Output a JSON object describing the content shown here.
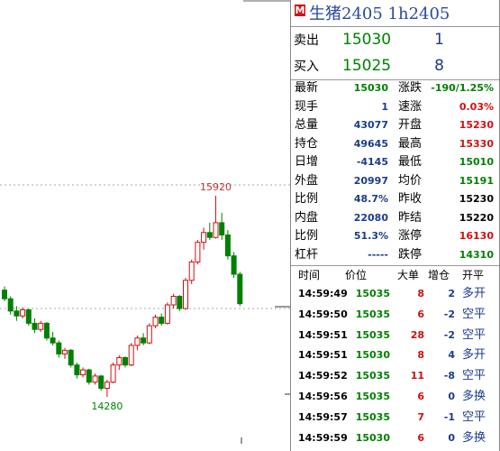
{
  "chart": {
    "high_label": 15920,
    "low_label": 14280,
    "up_color": "#d01010",
    "down_color": "#008000",
    "candles": [
      [
        15150,
        15180,
        15060,
        15080
      ],
      [
        15080,
        15100,
        14950,
        14980
      ],
      [
        14980,
        15020,
        14900,
        14940
      ],
      [
        14940,
        15010,
        14920,
        14990
      ],
      [
        14990,
        15000,
        14860,
        14880
      ],
      [
        14880,
        14920,
        14800,
        14830
      ],
      [
        14830,
        14900,
        14810,
        14880
      ],
      [
        14880,
        14890,
        14740,
        14760
      ],
      [
        14760,
        14810,
        14700,
        14720
      ],
      [
        14720,
        14740,
        14600,
        14630
      ],
      [
        14630,
        14680,
        14590,
        14660
      ],
      [
        14660,
        14670,
        14520,
        14540
      ],
      [
        14540,
        14560,
        14430,
        14460
      ],
      [
        14460,
        14520,
        14440,
        14500
      ],
      [
        14500,
        14510,
        14380,
        14400
      ],
      [
        14400,
        14470,
        14380,
        14450
      ],
      [
        14450,
        14460,
        14330,
        14350
      ],
      [
        14350,
        14420,
        14280,
        14400
      ],
      [
        14400,
        14560,
        14390,
        14540
      ],
      [
        14540,
        14620,
        14500,
        14600
      ],
      [
        14600,
        14610,
        14520,
        14540
      ],
      [
        14540,
        14720,
        14530,
        14700
      ],
      [
        14700,
        14780,
        14660,
        14760
      ],
      [
        14760,
        14800,
        14700,
        14720
      ],
      [
        14720,
        14880,
        14710,
        14860
      ],
      [
        14860,
        14950,
        14840,
        14930
      ],
      [
        14930,
        14960,
        14860,
        14880
      ],
      [
        14880,
        15050,
        14870,
        15030
      ],
      [
        15030,
        15120,
        15000,
        15100
      ],
      [
        15100,
        15110,
        14980,
        15000
      ],
      [
        15000,
        15250,
        14990,
        15230
      ],
      [
        15230,
        15400,
        15200,
        15380
      ],
      [
        15380,
        15560,
        15360,
        15540
      ],
      [
        15540,
        15660,
        15480,
        15620
      ],
      [
        15620,
        15700,
        15560,
        15580
      ],
      [
        15580,
        15920,
        15570,
        15700
      ],
      [
        15700,
        15780,
        15560,
        15600
      ],
      [
        15600,
        15640,
        15400,
        15430
      ],
      [
        15430,
        15460,
        15250,
        15280
      ],
      [
        15280,
        15300,
        15020,
        15040
      ]
    ]
  },
  "header": {
    "badge": "M",
    "title": "生猪2405  1h2405"
  },
  "orderbook": [
    {
      "label": "卖出",
      "price": "15030",
      "volume": "1"
    },
    {
      "label": "买入",
      "price": "15025",
      "volume": "8"
    }
  ],
  "stats": [
    [
      {
        "label": "最新",
        "value": "15030",
        "color": "#008000"
      },
      {
        "label": "涨跌",
        "value": "-190/1.25%",
        "color": "#008000"
      }
    ],
    [
      {
        "label": "现手",
        "value": "1",
        "color": "#1a3c8c"
      },
      {
        "label": "速涨",
        "value": "0.03%",
        "color": "#d01010"
      }
    ],
    [
      {
        "label": "总量",
        "value": "43077",
        "color": "#1a3c8c"
      },
      {
        "label": "开盘",
        "value": "15230",
        "color": "#d01010"
      }
    ],
    [
      {
        "label": "持仓",
        "value": "49645",
        "color": "#1a3c8c"
      },
      {
        "label": "最高",
        "value": "15330",
        "color": "#d01010"
      }
    ],
    [
      {
        "label": "日增",
        "value": "-4145",
        "color": "#1a3c8c"
      },
      {
        "label": "最低",
        "value": "15010",
        "color": "#008000"
      }
    ],
    [
      {
        "label": "外盘",
        "value": "20997",
        "color": "#1a3c8c"
      },
      {
        "label": "均价",
        "value": "15191",
        "color": "#008000"
      }
    ],
    [
      {
        "label": "比例",
        "value": "48.7%",
        "color": "#1a3c8c"
      },
      {
        "label": "昨收",
        "value": "15230",
        "color": "#000000"
      }
    ],
    [
      {
        "label": "内盘",
        "value": "22080",
        "color": "#1a3c8c"
      },
      {
        "label": "昨结",
        "value": "15220",
        "color": "#000000"
      }
    ],
    [
      {
        "label": "比例",
        "value": "51.3%",
        "color": "#1a3c8c"
      },
      {
        "label": "涨停",
        "value": "16130",
        "color": "#d01010"
      }
    ],
    [
      {
        "label": "杠杆",
        "value": "-----",
        "color": "#1a3c8c"
      },
      {
        "label": "跌停",
        "value": "14310",
        "color": "#008000"
      }
    ]
  ],
  "trades": {
    "header": [
      "时间",
      "价位",
      "大单",
      "增仓",
      "开平"
    ],
    "rows": [
      [
        "14:59:49",
        "15035",
        "8",
        "2",
        "多开"
      ],
      [
        "14:59:50",
        "15035",
        "6",
        "-2",
        "空平"
      ],
      [
        "14:59:51",
        "15035",
        "28",
        "-2",
        "空平"
      ],
      [
        "14:59:51",
        "15030",
        "8",
        "4",
        "多开"
      ],
      [
        "14:59:52",
        "15035",
        "11",
        "-8",
        "空平"
      ],
      [
        "14:59:56",
        "15035",
        "6",
        "0",
        "多换"
      ],
      [
        "14:59:57",
        "15035",
        "7",
        "-1",
        "空平"
      ],
      [
        "14:59:59",
        "15030",
        "6",
        "0",
        "多换"
      ]
    ]
  }
}
